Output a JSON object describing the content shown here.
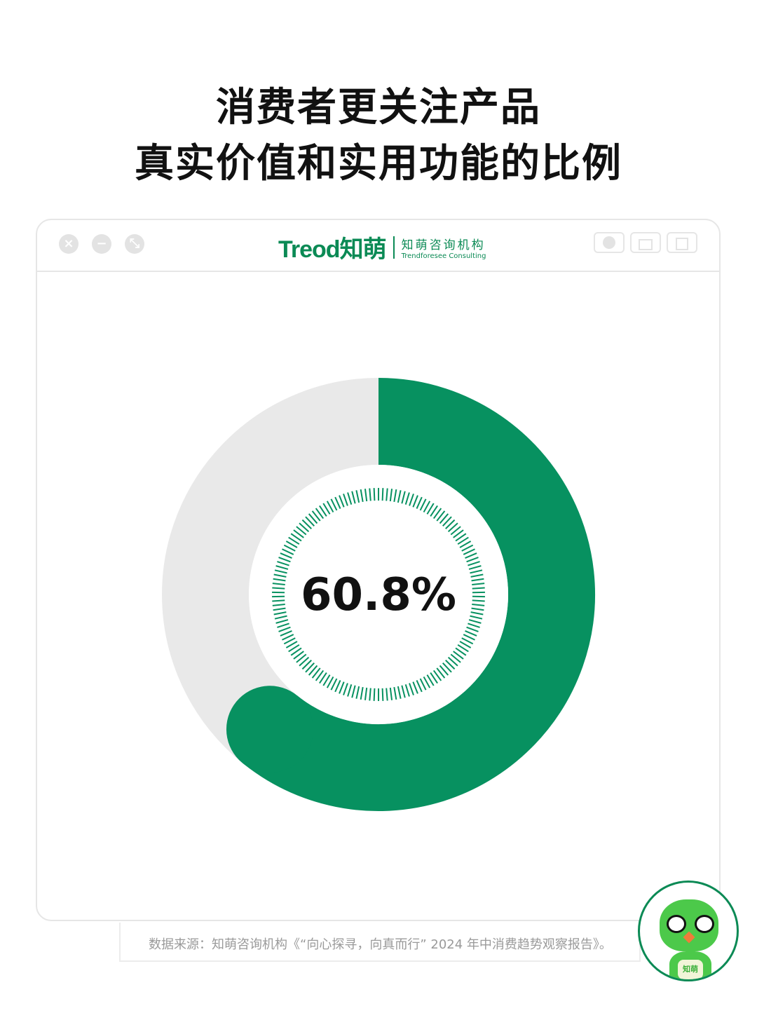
{
  "title": {
    "line1": "消费者更关注产品",
    "line2": "真实价值和实用功能的比例"
  },
  "window": {
    "logo_brand": "Treod知萌",
    "logo_org": "知萌咨询机构",
    "logo_org_en": "Trendforesee Consulting"
  },
  "chart_data": {
    "type": "pie",
    "variant": "donut",
    "values": [
      60.8,
      39.2
    ],
    "label": "60.8%",
    "colors": {
      "value": "#079160",
      "rest": "#e9e9e9",
      "ticks": "#079160"
    }
  },
  "footer": {
    "source": "数据来源：知萌咨询机构《“向心探寻，向真而行” 2024 年中消费趋势观察报告》。",
    "mascot_badge": "知萌"
  }
}
